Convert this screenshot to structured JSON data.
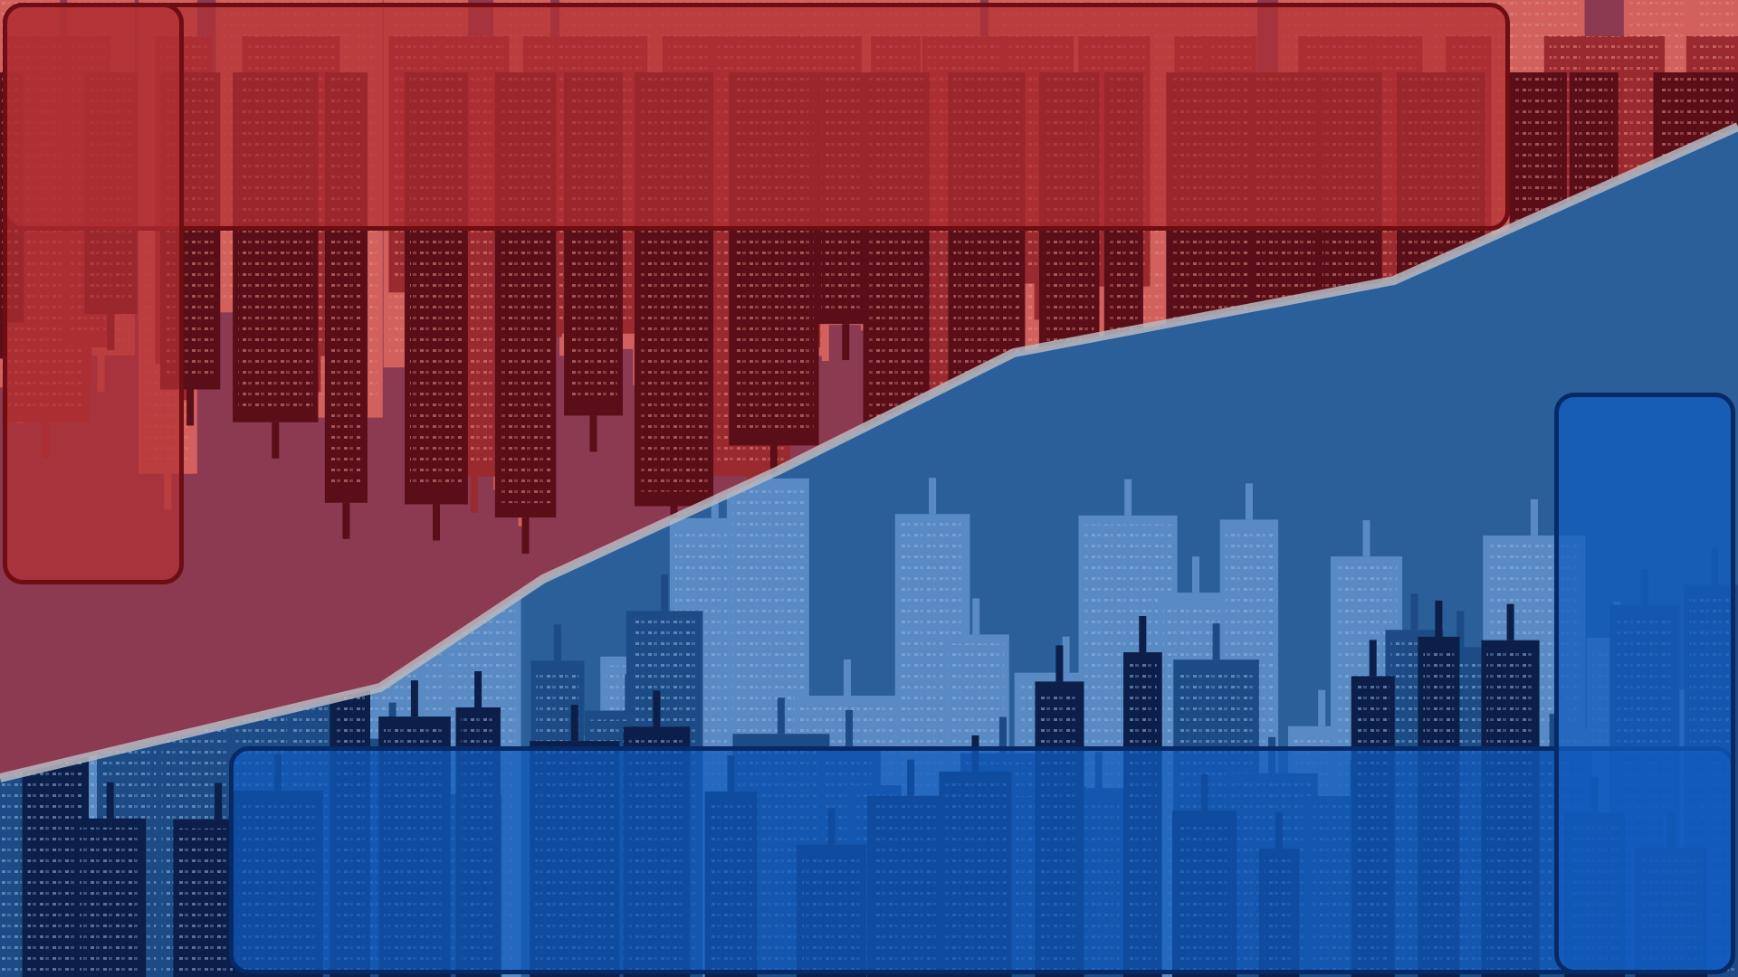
{
  "scene": {
    "description_tag": "versus-split-city",
    "colors": {
      "sky_red": "#8c3a52",
      "sky_blue": "#2a5f9a",
      "city_red_dark": "#5a0f18",
      "city_red_mid": "#9a2a30",
      "city_red_light": "#d2605c",
      "city_blue_dark": "#0b1f4a",
      "city_blue_mid": "#1d4b86",
      "city_blue_light": "#5a8ac4",
      "divider": "#b8b8c0",
      "red_overlay": "#b23034",
      "red_border": "#6e0d12",
      "blue_overlay": "#125cbe",
      "blue_border": "#072a66"
    }
  },
  "panels": {
    "red_team_area": {
      "team": "red"
    },
    "blue_team_area": {
      "team": "blue"
    }
  }
}
